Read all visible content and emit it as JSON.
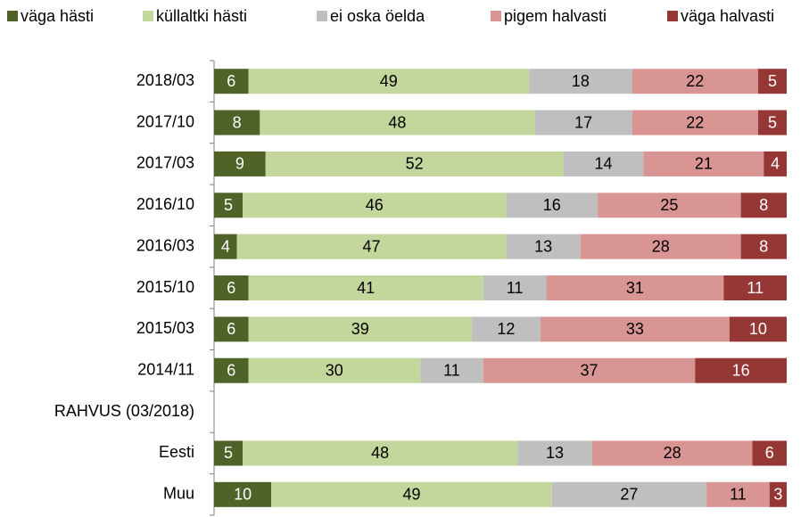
{
  "chart_data": {
    "type": "stacked-bar-horizontal",
    "categories": [
      "2018/03",
      "2017/10",
      "2017/03",
      "2016/10",
      "2016/03",
      "2015/10",
      "2015/03",
      "2014/11",
      "RAHVUS (03/2018)",
      "Eesti",
      "Muu"
    ],
    "xlim": [
      0,
      100
    ],
    "series": [
      {
        "name": "väga hästi",
        "color": "#4f6228",
        "values": [
          6,
          8,
          9,
          5,
          4,
          6,
          6,
          6,
          null,
          5,
          10
        ]
      },
      {
        "name": "küllaltki hästi",
        "color": "#c3d69b",
        "values": [
          49,
          48,
          52,
          46,
          47,
          41,
          39,
          30,
          null,
          48,
          49
        ]
      },
      {
        "name": "ei oska öelda",
        "color": "#bfbfbf",
        "values": [
          18,
          17,
          14,
          16,
          13,
          11,
          12,
          11,
          null,
          13,
          27
        ]
      },
      {
        "name": "pigem halvasti",
        "color": "#d99594",
        "values": [
          22,
          22,
          21,
          25,
          28,
          31,
          33,
          37,
          null,
          28,
          11
        ]
      },
      {
        "name": "väga halvasti",
        "color": "#953735",
        "values": [
          5,
          5,
          4,
          8,
          8,
          11,
          10,
          16,
          null,
          6,
          3
        ]
      }
    ]
  }
}
